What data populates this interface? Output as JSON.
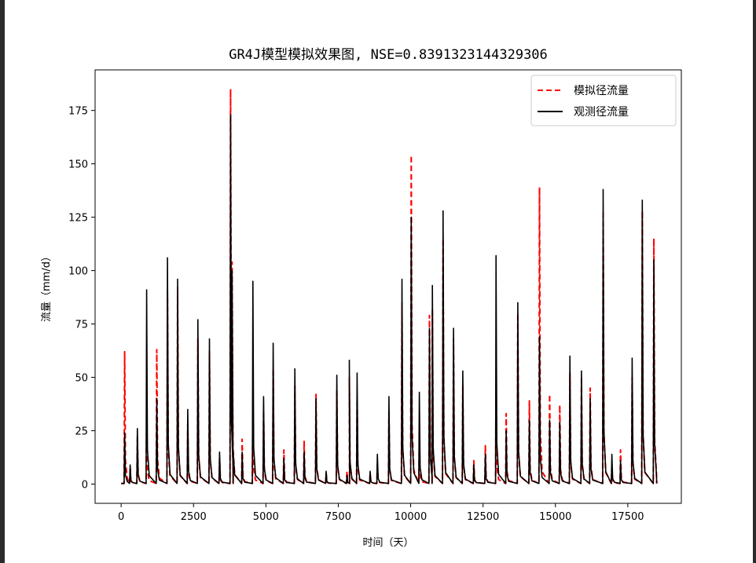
{
  "chart_data": {
    "type": "line",
    "title": "GR4J模型模拟效果图, NSE=0.8391323144329306",
    "xlabel": "时间（天）",
    "ylabel": "流量（mm/d）",
    "xlim": [
      -900,
      19350
    ],
    "ylim": [
      -9,
      194
    ],
    "xticks": [
      0,
      2500,
      5000,
      7500,
      10000,
      12500,
      15000,
      17500
    ],
    "yticks": [
      0,
      25,
      50,
      75,
      100,
      125,
      150,
      175
    ],
    "grid": false,
    "legend_position": "top-right",
    "series": [
      {
        "name": "模拟径流量",
        "color": "#ff0000",
        "style": "dashed",
        "peaks": [
          [
            120,
            62
          ],
          [
            310,
            8
          ],
          [
            560,
            22
          ],
          [
            880,
            34
          ],
          [
            1230,
            63
          ],
          [
            1600,
            90
          ],
          [
            1950,
            92
          ],
          [
            2300,
            28
          ],
          [
            2650,
            68
          ],
          [
            3050,
            62
          ],
          [
            3400,
            12
          ],
          [
            3780,
            185
          ],
          [
            3830,
            104
          ],
          [
            4180,
            21
          ],
          [
            4550,
            40
          ],
          [
            4920,
            34
          ],
          [
            5250,
            54
          ],
          [
            5620,
            16
          ],
          [
            6000,
            46
          ],
          [
            6320,
            20
          ],
          [
            6730,
            42
          ],
          [
            7080,
            5
          ],
          [
            7450,
            44
          ],
          [
            7800,
            6
          ],
          [
            7880,
            50
          ],
          [
            8150,
            40
          ],
          [
            8600,
            5
          ],
          [
            8850,
            10
          ],
          [
            9250,
            34
          ],
          [
            9700,
            85
          ],
          [
            10020,
            154
          ],
          [
            10300,
            21
          ],
          [
            10650,
            79
          ],
          [
            10750,
            82
          ],
          [
            11120,
            115
          ],
          [
            11480,
            68
          ],
          [
            11800,
            46
          ],
          [
            12180,
            11
          ],
          [
            12580,
            18
          ],
          [
            12950,
            46
          ],
          [
            13300,
            33
          ],
          [
            13700,
            80
          ],
          [
            14100,
            39
          ],
          [
            14450,
            139
          ],
          [
            14800,
            42
          ],
          [
            15150,
            37
          ],
          [
            15500,
            52
          ],
          [
            15900,
            50
          ],
          [
            16200,
            45
          ],
          [
            16650,
            128
          ],
          [
            16950,
            9
          ],
          [
            17250,
            16
          ],
          [
            17650,
            50
          ],
          [
            18000,
            128
          ],
          [
            18400,
            115
          ]
        ]
      },
      {
        "name": "观测径流量",
        "color": "#000000",
        "style": "solid",
        "peaks": [
          [
            120,
            24
          ],
          [
            310,
            9
          ],
          [
            560,
            26
          ],
          [
            880,
            91
          ],
          [
            1230,
            40
          ],
          [
            1600,
            106
          ],
          [
            1950,
            96
          ],
          [
            2300,
            35
          ],
          [
            2650,
            77
          ],
          [
            3050,
            68
          ],
          [
            3400,
            15
          ],
          [
            3780,
            173
          ],
          [
            3830,
            100
          ],
          [
            4180,
            15
          ],
          [
            4550,
            95
          ],
          [
            4920,
            41
          ],
          [
            5250,
            66
          ],
          [
            5620,
            12
          ],
          [
            6000,
            54
          ],
          [
            6320,
            15
          ],
          [
            6730,
            40
          ],
          [
            7080,
            6
          ],
          [
            7450,
            51
          ],
          [
            7800,
            4
          ],
          [
            7880,
            58
          ],
          [
            8150,
            52
          ],
          [
            8600,
            6
          ],
          [
            8850,
            14
          ],
          [
            9250,
            41
          ],
          [
            9700,
            96
          ],
          [
            10020,
            125
          ],
          [
            10300,
            43
          ],
          [
            10650,
            73
          ],
          [
            10750,
            93
          ],
          [
            11120,
            128
          ],
          [
            11480,
            73
          ],
          [
            11800,
            53
          ],
          [
            12180,
            9
          ],
          [
            12580,
            14
          ],
          [
            12950,
            107
          ],
          [
            13300,
            25
          ],
          [
            13700,
            85
          ],
          [
            14100,
            30
          ],
          [
            14450,
            69
          ],
          [
            14800,
            30
          ],
          [
            15150,
            29
          ],
          [
            15500,
            60
          ],
          [
            15900,
            53
          ],
          [
            16200,
            40
          ],
          [
            16650,
            138
          ],
          [
            16950,
            14
          ],
          [
            17250,
            11
          ],
          [
            17650,
            59
          ],
          [
            18000,
            133
          ],
          [
            18400,
            105
          ]
        ]
      }
    ]
  }
}
